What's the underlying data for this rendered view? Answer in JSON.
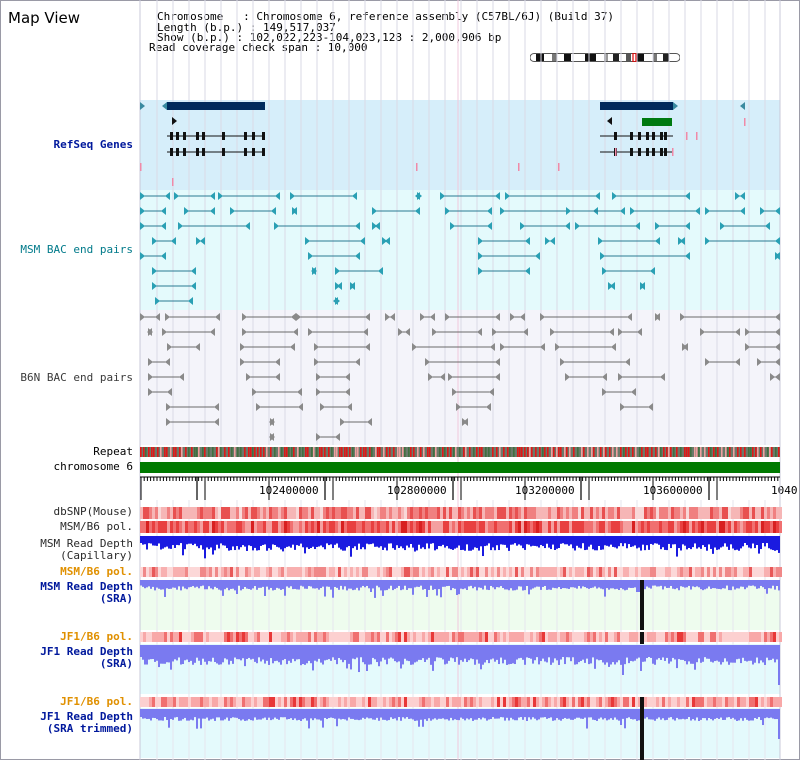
{
  "panel": {
    "title": "Map View"
  },
  "info": {
    "line1": "Chromosome   : Chromosome 6, reference assembly (C57BL/6J) (Build 37)",
    "line2": "Length (b.p.) : 149,517,037",
    "line3": "Show (b.p.) : 102,022,223-104,023,128 : 2,000,906 bp",
    "line4": "Read coverage check span : 10,000"
  },
  "labels": {
    "refseq": "RefSeq Genes",
    "msm_bac": "MSM BAC end pairs",
    "b6n_bac": "B6N BAC end pairs",
    "repeat": "Repeat",
    "chromosome": "chromosome 6",
    "dbsnp": "dbSNP(Mouse)",
    "msm_b6_pol": "MSM/B6 pol.",
    "msm_depth_cap_1": "MSM Read Depth",
    "msm_depth_cap_2": "(Capillary)",
    "msm_b6_pol_2": "MSM/B6 pol.",
    "msm_depth_sra_1": "MSM Read Depth",
    "msm_depth_sra_2": "(SRA)",
    "jf1_pol_1": "JF1/B6 pol.",
    "jf1_depth_1": "JF1 Read Depth",
    "jf1_depth_2": "(SRA)",
    "jf1_pol_2": "JF1/B6 pol.",
    "jf1_trim_1": "JF1 Read Depth",
    "jf1_trim_2": "(SRA trimmed)"
  },
  "axis": {
    "ticks": [
      "102400000",
      "102800000",
      "103200000",
      "103600000",
      "1040"
    ]
  },
  "colors": {
    "refseq_bg": "#d6eefa",
    "msm_bg": "#e4fafc",
    "b6n_bg": "#f4f4fa",
    "depth_bg": "#eefcee",
    "jf1_bg": "#e4fafc",
    "gene_navy": "#002a5c",
    "gene_green": "#007a10",
    "teal": "#2a7a92",
    "gray": "#5a5a5a",
    "chrom_green": "#007a00",
    "depth_blue": "#1a1ae0",
    "depth_light": "#7a7af0"
  }
}
